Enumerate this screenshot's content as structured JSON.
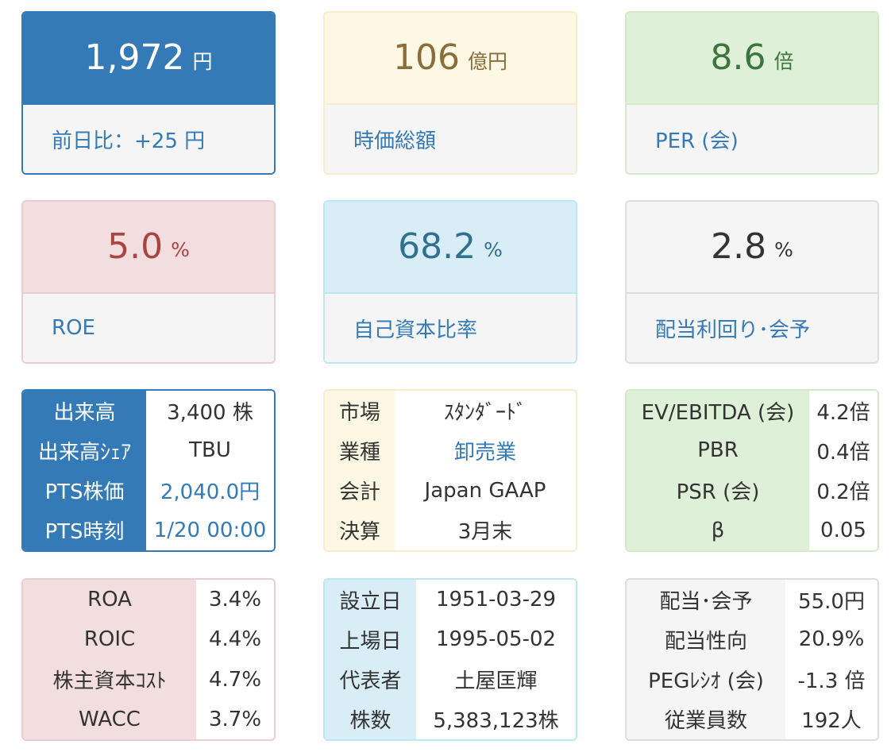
{
  "colors": {
    "primary": "#337ab7",
    "warning_bg": "#fcf8e3",
    "success_bg": "#dff0d8",
    "danger_bg": "#f2dede",
    "info_bg": "#d9edf7",
    "muted_bg": "#f5f5f5"
  },
  "price": {
    "value": "1,972",
    "unit": "円",
    "label": "前日比：+25 円"
  },
  "market_cap": {
    "value": "106",
    "unit": "億円",
    "label": "時価総額"
  },
  "per": {
    "value": "8.6",
    "unit": "倍",
    "label": "PER (会)"
  },
  "roe": {
    "value": "5.0",
    "unit": "%",
    "label": "ROE"
  },
  "equity_ratio": {
    "value": "68.2",
    "unit": "%",
    "label": "自己資本比率"
  },
  "dividend_yield": {
    "value": "2.8",
    "unit": "%",
    "label": "配当利回り･会予"
  },
  "trading": {
    "rows": [
      {
        "label": "出来高",
        "value": "3,400 株"
      },
      {
        "label": "出来高ｼｪｱ",
        "value": "TBU"
      },
      {
        "label": "PTS株価",
        "value": "2,040.0円"
      },
      {
        "label": "PTS時刻",
        "value": "1/20 00:00"
      }
    ]
  },
  "company": {
    "rows": [
      {
        "label": "市場",
        "value": "ｽﾀﾝﾀﾞｰﾄﾞ"
      },
      {
        "label": "業種",
        "value": "卸売業"
      },
      {
        "label": "会計",
        "value": "Japan GAAP"
      },
      {
        "label": "決算",
        "value": "3月末"
      }
    ]
  },
  "valuation": {
    "rows": [
      {
        "label": "EV/EBITDA (会)",
        "value": "4.2倍"
      },
      {
        "label": "PBR",
        "value": "0.4倍"
      },
      {
        "label": "PSR (会)",
        "value": "0.2倍"
      },
      {
        "label": "β",
        "value": "0.05"
      }
    ]
  },
  "returns": {
    "rows": [
      {
        "label": "ROA",
        "value": "3.4%"
      },
      {
        "label": "ROIC",
        "value": "4.4%"
      },
      {
        "label": "株主資本ｺｽﾄ",
        "value": "4.7%"
      },
      {
        "label": "WACC",
        "value": "3.7%"
      }
    ]
  },
  "profile": {
    "rows": [
      {
        "label": "設立日",
        "value": "1951-03-29"
      },
      {
        "label": "上場日",
        "value": "1995-05-02"
      },
      {
        "label": "代表者",
        "value": "土屋匡輝"
      },
      {
        "label": "株数",
        "value": "5,383,123株"
      }
    ]
  },
  "dividend": {
    "rows": [
      {
        "label": "配当･会予",
        "value": "55.0円"
      },
      {
        "label": "配当性向",
        "value": "20.9%"
      },
      {
        "label": "PEGﾚｼｵ (会)",
        "value": "-1.3 倍"
      },
      {
        "label": "従業員数",
        "value": "192人"
      }
    ]
  }
}
